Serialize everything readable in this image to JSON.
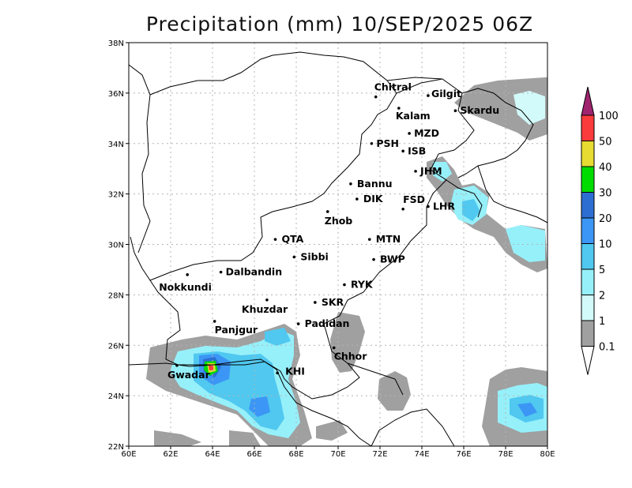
{
  "title": "Precipitation (mm) 10/SEP/2025 06Z",
  "axes": {
    "x_ticks": [
      "60E",
      "62E",
      "64E",
      "66E",
      "68E",
      "70E",
      "72E",
      "74E",
      "76E",
      "78E",
      "80E"
    ],
    "y_ticks": [
      "22N",
      "24N",
      "26N",
      "28N",
      "30N",
      "32N",
      "34N",
      "36N",
      "38N"
    ]
  },
  "cities": [
    {
      "name": "Chitral",
      "lon": 71.8,
      "lat": 35.85
    },
    {
      "name": "Gilgit",
      "lon": 74.3,
      "lat": 35.9
    },
    {
      "name": "Kalam",
      "lon": 72.9,
      "lat": 35.4
    },
    {
      "name": "Skardu",
      "lon": 75.6,
      "lat": 35.3
    },
    {
      "name": "MZD",
      "lon": 73.4,
      "lat": 34.4
    },
    {
      "name": "PSH",
      "lon": 71.6,
      "lat": 34.0
    },
    {
      "name": "ISB",
      "lon": 73.1,
      "lat": 33.7
    },
    {
      "name": "JHM",
      "lon": 73.7,
      "lat": 32.9
    },
    {
      "name": "Bannu",
      "lon": 70.6,
      "lat": 32.4
    },
    {
      "name": "DIK",
      "lon": 70.9,
      "lat": 31.8
    },
    {
      "name": "FSD",
      "lon": 73.1,
      "lat": 31.4
    },
    {
      "name": "LHR",
      "lon": 74.3,
      "lat": 31.5
    },
    {
      "name": "Zhob",
      "lon": 69.5,
      "lat": 31.3
    },
    {
      "name": "QTA",
      "lon": 67.0,
      "lat": 30.2
    },
    {
      "name": "MTN",
      "lon": 71.5,
      "lat": 30.2
    },
    {
      "name": "Sibbi",
      "lon": 67.9,
      "lat": 29.5
    },
    {
      "name": "BWP",
      "lon": 71.7,
      "lat": 29.4
    },
    {
      "name": "Nokkundi",
      "lon": 62.8,
      "lat": 28.8
    },
    {
      "name": "Dalbandin",
      "lon": 64.4,
      "lat": 28.9
    },
    {
      "name": "RYK",
      "lon": 70.3,
      "lat": 28.4
    },
    {
      "name": "Khuzdar",
      "lon": 66.6,
      "lat": 27.8
    },
    {
      "name": "SKR",
      "lon": 68.9,
      "lat": 27.7
    },
    {
      "name": "Panjgur",
      "lon": 64.1,
      "lat": 26.95
    },
    {
      "name": "Padidan",
      "lon": 68.1,
      "lat": 26.85
    },
    {
      "name": "Chhor",
      "lon": 69.8,
      "lat": 25.9
    },
    {
      "name": "KHI",
      "lon": 67.1,
      "lat": 24.9
    },
    {
      "name": "Gwadar",
      "lon": 62.3,
      "lat": 25.2
    }
  ],
  "colorbar": {
    "levels": [
      "0.1",
      "1",
      "2",
      "5",
      "10",
      "20",
      "30",
      "40",
      "50",
      "100"
    ],
    "colors": [
      "#a0a0a0",
      "#d2fafa",
      "#96f0fa",
      "#50c8f0",
      "#3c96f5",
      "#2d6ed2",
      "#00dc00",
      "#e6dc32",
      "#fa3c3c",
      "#a0236e"
    ]
  }
}
